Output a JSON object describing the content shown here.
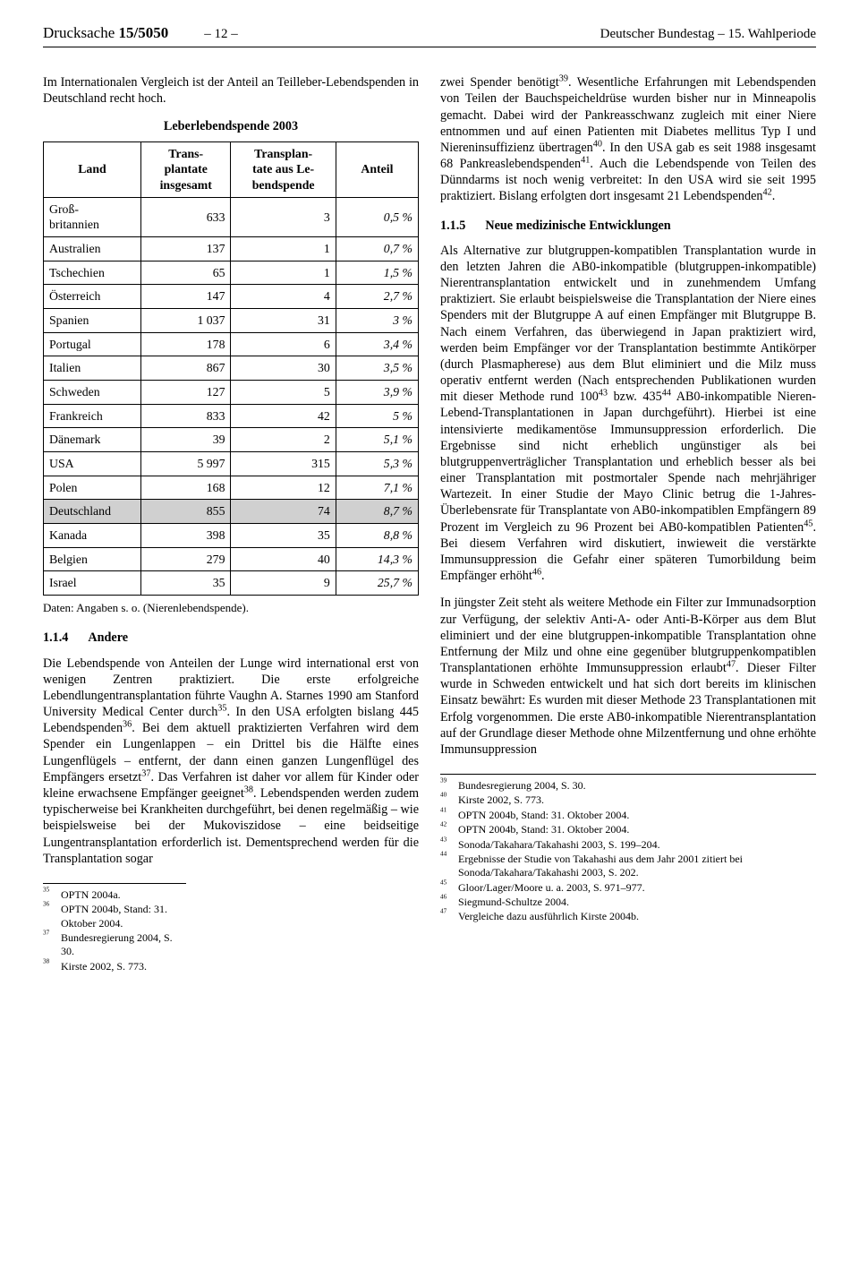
{
  "header": {
    "left_prefix": "Drucksache ",
    "left_num": "15/5050",
    "page_num": "– 12 –",
    "right": "Deutscher Bundestag – 15. Wahlperiode"
  },
  "left": {
    "intro": "Im Internationalen Vergleich ist der Anteil an Teilleber-Lebendspenden in Deutschland recht hoch.",
    "table_title": "Leberlebendspende 2003",
    "cols": {
      "c1": "Land",
      "c2": "Trans-\nplantate\ninsgesamt",
      "c3": "Transplan-\ntate aus Le-\nbendspende",
      "c4": "Anteil"
    },
    "rows": [
      {
        "l": "Groß-\nbritannien",
        "a": "633",
        "b": "3",
        "p": "0,5 %",
        "hl": false
      },
      {
        "l": "Australien",
        "a": "137",
        "b": "1",
        "p": "0,7 %",
        "hl": false
      },
      {
        "l": "Tschechien",
        "a": "65",
        "b": "1",
        "p": "1,5 %",
        "hl": false
      },
      {
        "l": "Österreich",
        "a": "147",
        "b": "4",
        "p": "2,7 %",
        "hl": false
      },
      {
        "l": "Spanien",
        "a": "1 037",
        "b": "31",
        "p": "3 %",
        "hl": false
      },
      {
        "l": "Portugal",
        "a": "178",
        "b": "6",
        "p": "3,4 %",
        "hl": false
      },
      {
        "l": "Italien",
        "a": "867",
        "b": "30",
        "p": "3,5 %",
        "hl": false
      },
      {
        "l": "Schweden",
        "a": "127",
        "b": "5",
        "p": "3,9 %",
        "hl": false
      },
      {
        "l": "Frankreich",
        "a": "833",
        "b": "42",
        "p": "5 %",
        "hl": false
      },
      {
        "l": "Dänemark",
        "a": "39",
        "b": "2",
        "p": "5,1 %",
        "hl": false
      },
      {
        "l": "USA",
        "a": "5 997",
        "b": "315",
        "p": "5,3 %",
        "hl": false
      },
      {
        "l": "Polen",
        "a": "168",
        "b": "12",
        "p": "7,1 %",
        "hl": false
      },
      {
        "l": "Deutschland",
        "a": "855",
        "b": "74",
        "p": "8,7 %",
        "hl": true
      },
      {
        "l": "Kanada",
        "a": "398",
        "b": "35",
        "p": "8,8 %",
        "hl": false
      },
      {
        "l": "Belgien",
        "a": "279",
        "b": "40",
        "p": "14,3 %",
        "hl": false
      },
      {
        "l": "Israel",
        "a": "35",
        "b": "9",
        "p": "25,7 %",
        "hl": false
      }
    ],
    "tablenote": "Daten: Angaben s. o. (Nierenlebendspende).",
    "sec_num": "1.1.4",
    "sec_title": "Andere",
    "body1": "Die Lebendspende von Anteilen der Lunge wird international erst von wenigen Zentren praktiziert. Die erste erfolgreiche Lebendlungentransplantation führte Vaughn A. Starnes 1990 am Stanford University Medical Center durch",
    "body1_fn": "35",
    "body1b": ". In den USA erfolgten bislang 445 Lebendspenden",
    "body1b_fn": "36",
    "body1c": ". Bei dem aktuell praktizierten Verfahren wird dem Spender ein Lungenlappen – ein Drittel bis die Hälfte eines Lungenflügels – entfernt, der dann einen ganzen Lungenflügel des Empfängers ersetzt",
    "body1c_fn": "37",
    "body1d": ". Das Verfahren ist daher vor allem für Kinder oder kleine erwachsene Empfänger geeignet",
    "body1d_fn": "38",
    "body1e": ". Lebendspenden werden zudem typischerweise bei Krankheiten durchgeführt, bei denen regelmäßig – wie beispielsweise bei der Mukoviszidose – eine beidseitige Lungentransplantation erforderlich ist. Dementsprechend werden für die Transplantation sogar",
    "footnotes": [
      {
        "n": "35",
        "t": "OPTN 2004a."
      },
      {
        "n": "36",
        "t": "OPTN 2004b, Stand: 31. Oktober 2004."
      },
      {
        "n": "37",
        "t": "Bundesregierung 2004, S. 30."
      },
      {
        "n": "38",
        "t": "Kirste 2002, S. 773."
      }
    ]
  },
  "right": {
    "p1a": "zwei Spender benötigt",
    "p1a_fn": "39",
    "p1b": ". Wesentliche Erfahrungen mit Lebendspenden von Teilen der Bauchspeicheldrüse wurden bisher nur in Minneapolis gemacht. Dabei wird der Pankreasschwanz zugleich mit einer Niere entnommen und auf einen Patienten mit Diabetes mellitus Typ I und Niereninsuffizienz übertragen",
    "p1b_fn": "40",
    "p1c": ". In den USA gab es seit 1988 insgesamt 68 Pankreaslebendspenden",
    "p1c_fn": "41",
    "p1d": ". Auch die Lebendspende von Teilen des Dünndarms ist noch wenig verbreitet: In den USA wird sie seit 1995 praktiziert. Bislang erfolgten dort insgesamt 21 Lebendspenden",
    "p1d_fn": "42",
    "p1e": ".",
    "sec_num": "1.1.5",
    "sec_title": "Neue medizinische Entwicklungen",
    "p2a": "Als Alternative zur blutgruppen-kompatiblen Transplantation wurde in den letzten Jahren die AB0-inkompatible (blutgruppen-inkompatible) Nierentransplantation entwickelt und in zunehmendem Umfang praktiziert. Sie erlaubt beispielsweise die Transplantation der Niere eines Spenders mit der Blutgruppe A auf einen Empfänger mit Blutgruppe B. Nach einem Verfahren, das überwiegend in Japan praktiziert wird, werden beim Empfänger vor der Transplantation bestimmte Antikörper (durch Plasmapherese) aus dem Blut eliminiert und die Milz muss operativ entfernt werden (Nach entsprechenden Publikationen wurden mit dieser Methode rund 100",
    "p2a_fn": "43",
    "p2b": " bzw. 435",
    "p2b_fn": "44",
    "p2c": " AB0-inkompatible Nieren-Lebend-Transplantationen in Japan durchgeführt). Hierbei ist eine intensivierte medikamentöse Immunsuppression erforderlich. Die Ergebnisse sind nicht erheblich ungünstiger als bei blutgruppenverträglicher Transplantation und erheblich besser als bei einer Transplantation mit postmortaler Spende nach mehrjähriger Wartezeit. In einer Studie der Mayo Clinic betrug die 1-Jahres-Überlebensrate für Transplantate von  AB0-inkompatiblen Empfängern 89 Prozent im Vergleich zu 96 Prozent bei AB0-kompatiblen Patienten",
    "p2c_fn": "45",
    "p2d": ". Bei diesem Verfahren wird diskutiert, inwieweit die verstärkte Immunsuppression die Gefahr einer späteren Tumorbildung beim Empfänger erhöht",
    "p2d_fn": "46",
    "p2e": ".",
    "p3a": "In jüngster Zeit steht als weitere Methode ein Filter zur Immunadsorption zur Verfügung, der selektiv Anti-A- oder Anti-B-Körper aus dem Blut eliminiert und der eine blutgruppen-inkompatible Transplantation ohne Entfernung der Milz und ohne eine gegenüber blutgruppenkompatiblen Transplantationen erhöhte Immunsuppression erlaubt",
    "p3a_fn": "47",
    "p3b": ". Dieser Filter wurde in Schweden entwickelt und hat sich dort bereits im klinischen Einsatz bewährt: Es wurden mit dieser Methode 23 Transplantationen mit Erfolg vorgenommen. Die erste AB0-inkompatible Nierentransplantation auf der Grundlage dieser Methode ohne Milzentfernung und ohne erhöhte Immunsuppression",
    "footnotes": [
      {
        "n": "39",
        "t": "Bundesregierung 2004, S. 30."
      },
      {
        "n": "40",
        "t": "Kirste 2002, S. 773."
      },
      {
        "n": "41",
        "t": "OPTN 2004b, Stand: 31. Oktober 2004."
      },
      {
        "n": "42",
        "t": "OPTN 2004b, Stand: 31. Oktober 2004."
      },
      {
        "n": "43",
        "t": "Sonoda/Takahara/Takahashi 2003, S. 199–204."
      },
      {
        "n": "44",
        "t": "Ergebnisse der Studie von Takahashi aus dem Jahr 2001 zitiert bei Sonoda/Takahara/Takahashi 2003, S. 202."
      },
      {
        "n": "45",
        "t": "Gloor/Lager/Moore u. a. 2003, S. 971–977."
      },
      {
        "n": "46",
        "t": "Siegmund-Schultze 2004."
      },
      {
        "n": "47",
        "t": "Vergleiche dazu ausführlich Kirste 2004b."
      }
    ]
  }
}
